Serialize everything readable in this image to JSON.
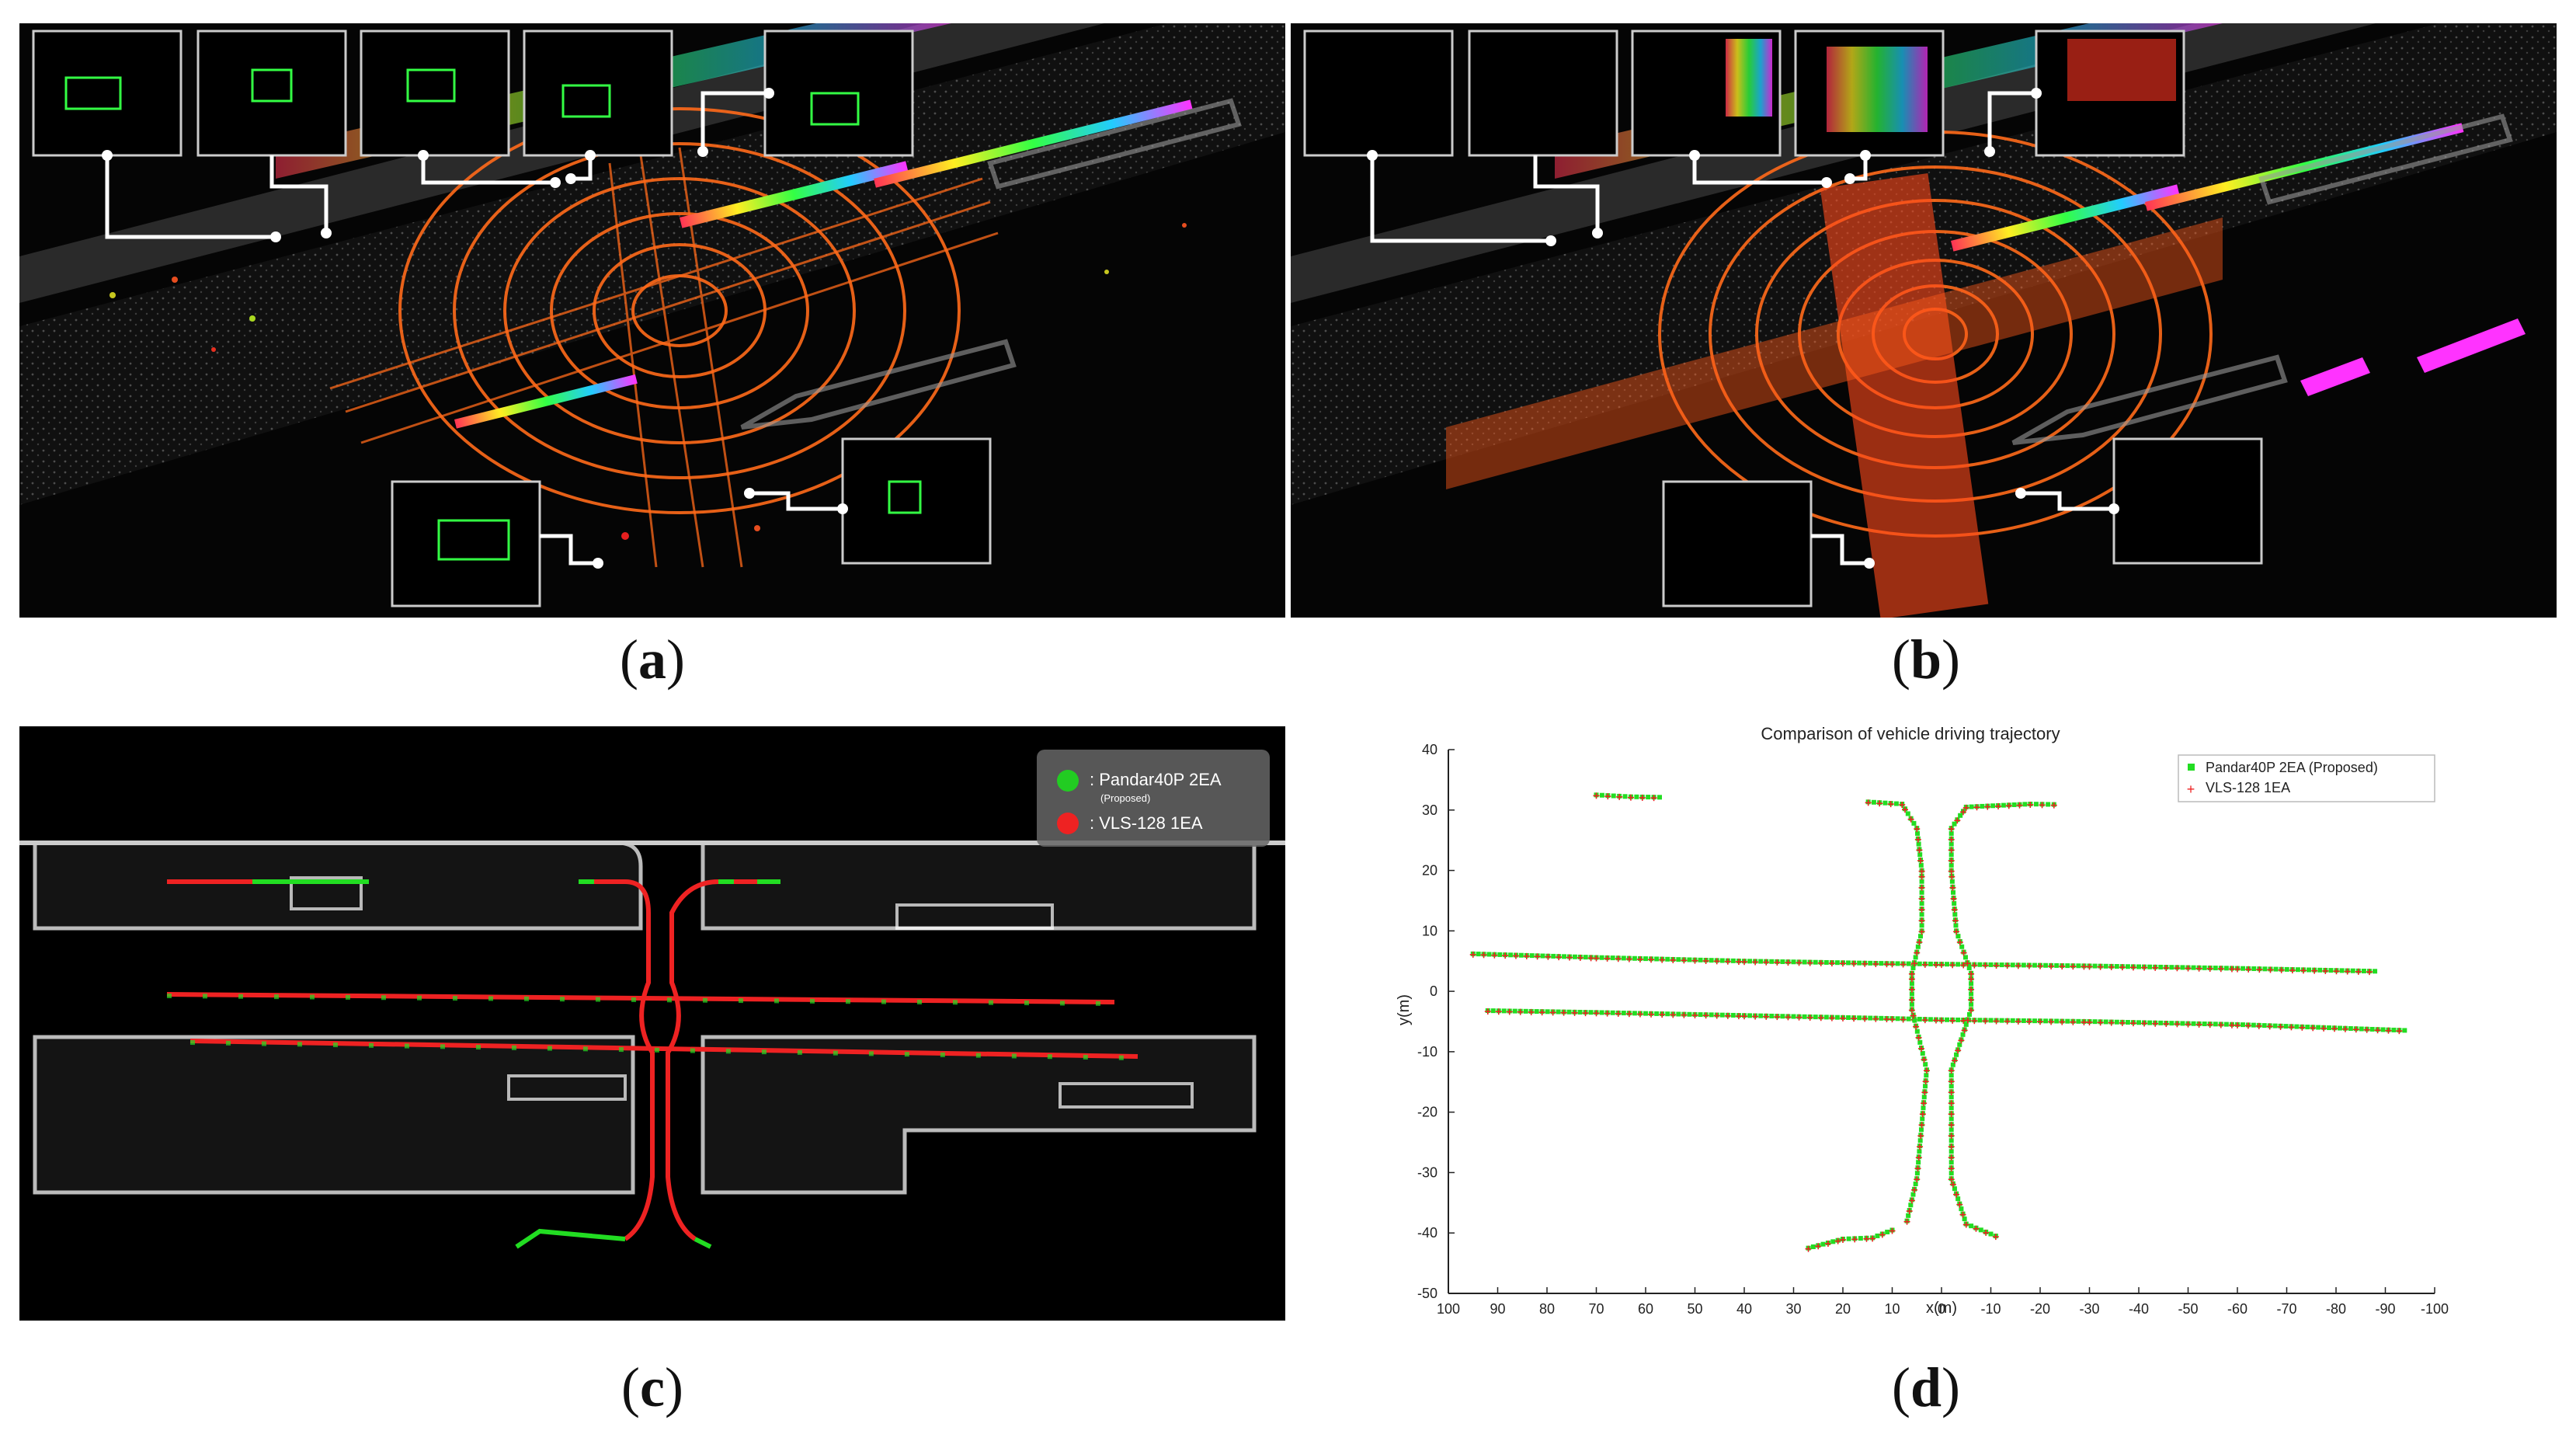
{
  "captions": {
    "a": {
      "open": "(",
      "letter": "a",
      "close": ")"
    },
    "b": {
      "open": "(",
      "letter": "b",
      "close": ")"
    },
    "c": {
      "open": "(",
      "letter": "c",
      "close": ")"
    },
    "d": {
      "open": "(",
      "letter": "d",
      "close": ")"
    }
  },
  "panel_c": {
    "legend": {
      "items": [
        {
          "label": ": Pandar40P 2EA",
          "sublabel": "(Proposed)",
          "color": "#22cc22"
        },
        {
          "label": ": VLS-128 1EA",
          "sublabel": "",
          "color": "#ee2222"
        }
      ]
    }
  },
  "chart_data": {
    "type": "scatter",
    "title": "Comparison of vehicle driving trajectory",
    "xlabel": "x(m)",
    "ylabel": "y(m)",
    "xlim": [
      100,
      -100
    ],
    "ylim": [
      -50,
      40
    ],
    "x_reversed": true,
    "xticks": [
      100,
      90,
      80,
      70,
      60,
      50,
      40,
      30,
      20,
      10,
      0,
      -10,
      -20,
      -30,
      -40,
      -50,
      -60,
      -70,
      -80,
      -90,
      -100
    ],
    "yticks": [
      40,
      30,
      20,
      10,
      0,
      -10,
      -20,
      -30,
      -40,
      -50
    ],
    "grid": false,
    "legend_position": "top-right",
    "series": [
      {
        "name": "Pandar40P 2EA (Proposed)",
        "color": "#22dd22",
        "marker": "square"
      },
      {
        "name": "VLS-128 1EA",
        "color": "#ee2222",
        "marker": "plus"
      }
    ],
    "trajectories": [
      {
        "points": [
          [
            95,
            6.2
          ],
          [
            70,
            5.6
          ],
          [
            40,
            5.0
          ],
          [
            10,
            4.6
          ],
          [
            0,
            4.5
          ],
          [
            -30,
            4.2
          ],
          [
            -60,
            3.8
          ],
          [
            -89,
            3.3
          ]
        ]
      },
      {
        "points": [
          [
            92,
            -3.2
          ],
          [
            70,
            -3.5
          ],
          [
            40,
            -4.0
          ],
          [
            10,
            -4.5
          ],
          [
            0,
            -4.7
          ],
          [
            -30,
            -5.0
          ],
          [
            -60,
            -5.5
          ],
          [
            -95,
            -6.5
          ]
        ]
      },
      {
        "points": [
          [
            7,
            -38
          ],
          [
            5,
            -31
          ],
          [
            3,
            -13
          ],
          [
            6,
            -3
          ],
          [
            6,
            3
          ],
          [
            4,
            10
          ],
          [
            4,
            20
          ],
          [
            5,
            27
          ],
          [
            8,
            31
          ],
          [
            16,
            31.4
          ]
        ]
      },
      {
        "points": [
          [
            -11,
            -40.5
          ],
          [
            -5,
            -38.5
          ],
          [
            -2,
            -31
          ],
          [
            -2,
            -13
          ],
          [
            -6,
            -3
          ],
          [
            -6,
            3
          ],
          [
            -3,
            10
          ],
          [
            -2,
            20
          ],
          [
            -2,
            27
          ],
          [
            -5,
            30.5
          ],
          [
            -18,
            31
          ],
          [
            -24,
            30.9
          ]
        ]
      },
      {
        "points": [
          [
            27,
            -42.5
          ],
          [
            20,
            -41
          ],
          [
            14,
            -40.8
          ],
          [
            9,
            -39.2
          ]
        ]
      },
      {
        "points": [
          [
            70,
            32.5
          ],
          [
            63,
            32.2
          ],
          [
            56,
            32.1
          ]
        ]
      }
    ]
  }
}
